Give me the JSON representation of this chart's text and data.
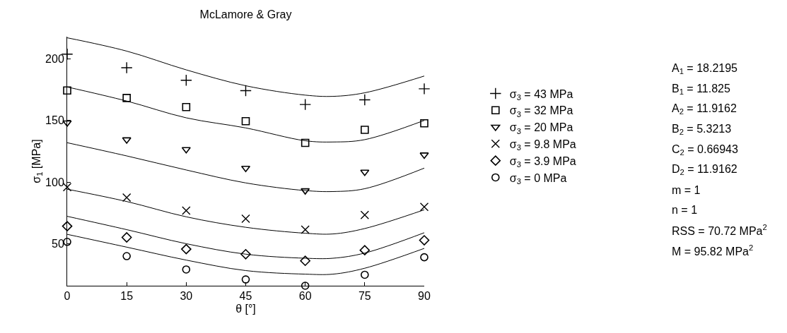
{
  "chart_data": {
    "type": "scatter",
    "title": "McLamore & Gray",
    "xlabel": "θ [°]",
    "ylabel": "σ$_{1}$ [MPa]",
    "x": [
      0,
      15,
      30,
      45,
      60,
      75,
      90
    ],
    "xlim": [
      0,
      90
    ],
    "xticks": [
      0,
      15,
      30,
      45,
      60,
      75,
      90
    ],
    "ylim": [
      16,
      218
    ],
    "yticks": [
      50,
      100,
      150,
      200
    ],
    "legend": "right",
    "series": [
      {
        "name": "σ$_{3}$ = 43 MPa",
        "color": "#000000",
        "marker": "cross",
        "values": [
          203.8,
          192.8,
          182.7,
          174.2,
          163,
          166.8,
          175.7
        ]
      },
      {
        "name": "σ$_{3}$ = 32 MPa",
        "color": "#000000",
        "marker": "square",
        "values": [
          174.4,
          168.3,
          160.9,
          149.5,
          131.9,
          142.5,
          147.8
        ]
      },
      {
        "name": "σ$_{3}$ = 20 MPa",
        "color": "#000000",
        "marker": "triangle-down",
        "values": [
          148.2,
          134.5,
          126.6,
          111.4,
          93.2,
          108.3,
          122.2
        ]
      },
      {
        "name": "σ$_{3}$ = 9.8 MPa",
        "color": "#000000",
        "marker": "x",
        "values": [
          96,
          87.5,
          77,
          70.4,
          61.5,
          73.4,
          79.9
        ]
      },
      {
        "name": "σ$_{3}$ = 3.9 MPa",
        "color": "#000000",
        "marker": "diamond",
        "values": [
          64.3,
          55.2,
          45.7,
          41.6,
          36.2,
          44.8,
          52.9
        ]
      },
      {
        "name": "σ$_{3}$ = 0 MPa",
        "color": "#000000",
        "marker": "circle",
        "values": [
          51.6,
          40,
          29.2,
          21.1,
          16,
          24.9,
          39.1
        ]
      },
      {
        "type": "line",
        "color": "#000000",
        "marker": "none",
        "line_style": "solid",
        "x": [
          0,
          15,
          30,
          45,
          60,
          67,
          75,
          90
        ],
        "values": [
          217.1,
          206.3,
          191.1,
          178.2,
          170.6,
          169.6,
          172.5,
          186.1
        ]
      },
      {
        "type": "line",
        "color": "#000000",
        "marker": "none",
        "line_style": "solid",
        "x": [
          0,
          15,
          30,
          45,
          60,
          67,
          75,
          90
        ],
        "values": [
          177.2,
          165.8,
          152.2,
          144,
          133.6,
          132.6,
          134.5,
          150.1
        ]
      },
      {
        "type": "line",
        "color": "#000000",
        "marker": "none",
        "line_style": "solid",
        "x": [
          0,
          15,
          30,
          45,
          60,
          67,
          75,
          90
        ],
        "values": [
          132,
          121.3,
          109.9,
          99.4,
          93.2,
          92.4,
          94.7,
          111.4
        ]
      },
      {
        "type": "line",
        "color": "#000000",
        "marker": "none",
        "line_style": "solid",
        "x": [
          0,
          15,
          30,
          45,
          60,
          67,
          75,
          90
        ],
        "values": [
          94.3,
          84.3,
          71.9,
          63.4,
          58.6,
          58,
          62.4,
          77.6
        ]
      },
      {
        "type": "line",
        "color": "#000000",
        "marker": "none",
        "line_style": "solid",
        "x": [
          0,
          15,
          30,
          45,
          60,
          67,
          75,
          90
        ],
        "values": [
          72.3,
          61.5,
          50.1,
          41.6,
          38.3,
          38.3,
          42.5,
          59
        ]
      },
      {
        "type": "line",
        "color": "#000000",
        "marker": "none",
        "line_style": "solid",
        "x": [
          0,
          15,
          30,
          45,
          60,
          67,
          75,
          90
        ],
        "values": [
          57.7,
          47.3,
          36.8,
          28.3,
          25.4,
          25.4,
          30.2,
          46.3
        ]
      }
    ],
    "annotations": [
      "A$_{1}$ = 18.2195",
      "B$_{1}$ = 11.825",
      "A$_{2}$ = 11.9162",
      "B$_{2}$ = 5.3213",
      "C$_{2}$ = 0.66943",
      "D$_{2}$ = 11.9162",
      "m = 1",
      "n = 1",
      "RSS = 70.72 MPa$^{2}$",
      "M = 95.82 MPa$^{2}$"
    ]
  }
}
